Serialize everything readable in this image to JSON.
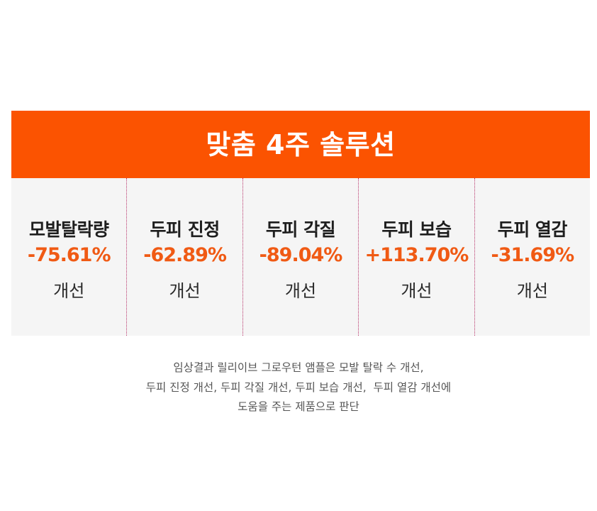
{
  "banner": {
    "title": "맞춤 4주 솔루션",
    "background_color": "#fb5301",
    "text_color": "#ffffff"
  },
  "stats": {
    "value_color": "#f05a14",
    "divider_color": "#b8336a",
    "panel_color": "#f5f5f5",
    "items": [
      {
        "label": "모발탈락량",
        "value": "-75.61%",
        "note": "개선"
      },
      {
        "label": "두피 진정",
        "value": "-62.89%",
        "note": "개선"
      },
      {
        "label": "두피 각질",
        "value": "-89.04%",
        "note": "개선"
      },
      {
        "label": "두피 보습",
        "value": "+113.70%",
        "note": "개선"
      },
      {
        "label": "두피 열감",
        "value": "-31.69%",
        "note": "개선"
      }
    ]
  },
  "caption": {
    "lines": [
      "임상결과 릴리이브 그로우턴 앰플은 모발 탈락 수 개선,",
      "두피 진정 개선, 두피 각질 개선, 두피 보습 개선,  두피 열감 개선에",
      "도움을 주는 제품으로 판단"
    ]
  }
}
